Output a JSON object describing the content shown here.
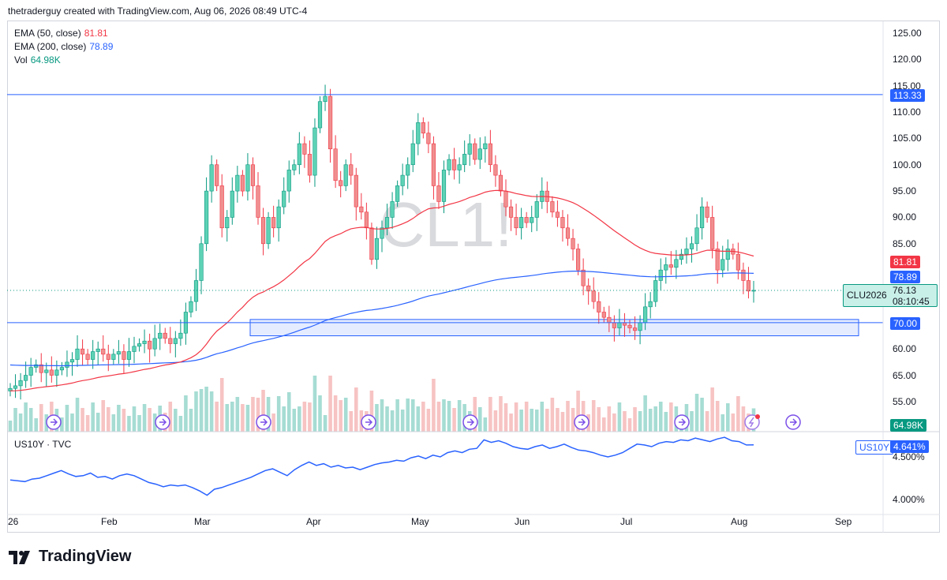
{
  "header": {
    "credit": "thetraderguy created with TradingView.com, Aug 06, 2026 08:49 UTC-4"
  },
  "watermark": "CL1!",
  "legend": {
    "ema50": {
      "label": "EMA (50, close)",
      "value": "81.81",
      "color": "#f23645"
    },
    "ema200": {
      "label": "EMA (200, close)",
      "value": "78.89",
      "color": "#2962ff"
    },
    "vol": {
      "label": "Vol",
      "value": "64.98K",
      "color": "#089981"
    }
  },
  "price_axis": {
    "ticks": [
      "125.00",
      "120.00",
      "115.00",
      "110.00",
      "105.00",
      "100.00",
      "95.00",
      "90.00",
      "85.00",
      "60.00",
      "65.00",
      "55.00"
    ],
    "tick_values": [
      125,
      120,
      115,
      110,
      105,
      100,
      95,
      90,
      85,
      65,
      60,
      55
    ]
  },
  "price_labels": {
    "resistance": {
      "text": "113.33",
      "value": 113.33,
      "color": "#2962ff"
    },
    "ema50": {
      "text": "81.81",
      "value": 81.81,
      "color": "#f23645"
    },
    "ema200": {
      "text": "78.89",
      "value": 78.89,
      "color": "#2962ff"
    },
    "last": {
      "symbol": "CLU2026",
      "price": "76.13",
      "countdown": "08:10:45",
      "value": 76.13,
      "color": "#089981"
    },
    "support": {
      "text": "70.00",
      "value": 70.0,
      "color": "#2962ff"
    },
    "volume": {
      "text": "64.98K",
      "color": "#089981"
    }
  },
  "support_zone": {
    "top": 70.6,
    "bottom": 67.5,
    "start_index": 48
  },
  "time_axis": {
    "labels": [
      "26",
      "Feb",
      "Mar",
      "Apr",
      "May",
      "Jun",
      "Jul",
      "Aug",
      "Sep"
    ]
  },
  "us10y": {
    "legend": "US10Y · TVC",
    "tag": "US10Y",
    "value": "4.641%",
    "ticks": [
      "4.500%",
      "4.000%"
    ],
    "tick_values": [
      4.5,
      4.0
    ],
    "color": "#2962ff"
  },
  "brand": "TradingView",
  "chart_data": {
    "type": "candlestick",
    "symbol": "CL1!",
    "contract": "CLU2026",
    "ohlc_close_path": [
      57.5,
      58,
      59,
      60,
      61.5,
      62,
      60.5,
      61,
      60,
      61,
      61.5,
      62.5,
      63,
      65,
      64,
      63,
      64.5,
      65,
      64,
      63,
      64,
      64.5,
      63,
      64.5,
      65.5,
      66,
      66.5,
      65,
      67,
      68,
      67,
      66,
      67,
      68,
      72,
      74,
      78,
      85,
      95,
      100,
      96,
      88,
      90,
      95,
      98,
      95,
      100,
      96,
      90,
      85,
      90,
      88,
      92,
      95,
      99,
      100,
      104,
      102,
      98,
      107,
      112,
      113,
      103,
      97,
      96,
      100,
      98,
      92,
      91,
      88,
      82,
      86,
      88,
      90,
      93,
      96,
      98,
      100,
      104,
      108,
      106,
      104,
      96,
      93,
      99,
      101,
      99,
      100,
      102,
      104,
      101,
      103,
      104,
      100,
      98,
      95,
      92,
      90,
      88,
      90,
      89,
      90,
      93,
      95,
      93,
      91,
      90,
      88,
      86,
      84,
      80,
      77,
      76,
      74,
      72,
      71,
      70,
      69,
      70,
      69.5,
      69,
      68.5,
      70,
      73,
      74,
      78,
      80,
      81,
      80.5,
      82,
      83,
      84,
      85,
      88,
      92,
      90,
      84,
      80,
      82,
      84,
      83,
      80,
      78,
      76,
      76.13
    ],
    "ema50_end": 81.81,
    "ema200_end": 78.89,
    "volume_last": "64.98K",
    "resistance": 113.33,
    "support": 70.0,
    "x_labels": [
      "26",
      "Feb",
      "Mar",
      "Apr",
      "May",
      "Jun",
      "Jul",
      "Aug",
      "Sep"
    ],
    "us10y_path": [
      4.23,
      4.22,
      4.21,
      4.24,
      4.25,
      4.28,
      4.31,
      4.34,
      4.3,
      4.27,
      4.28,
      4.31,
      4.26,
      4.27,
      4.24,
      4.28,
      4.3,
      4.28,
      4.24,
      4.2,
      4.18,
      4.15,
      4.17,
      4.16,
      4.17,
      4.14,
      4.1,
      4.05,
      4.12,
      4.14,
      4.17,
      4.2,
      4.23,
      4.26,
      4.3,
      4.34,
      4.36,
      4.32,
      4.28,
      4.35,
      4.4,
      4.44,
      4.4,
      4.42,
      4.38,
      4.4,
      4.37,
      4.38,
      4.35,
      4.38,
      4.41,
      4.43,
      4.44,
      4.46,
      4.45,
      4.49,
      4.51,
      4.48,
      4.52,
      4.5,
      4.55,
      4.57,
      4.55,
      4.59,
      4.6,
      4.7,
      4.67,
      4.69,
      4.66,
      4.62,
      4.6,
      4.59,
      4.62,
      4.64,
      4.6,
      4.62,
      4.65,
      4.61,
      4.58,
      4.57,
      4.55,
      4.52,
      4.5,
      4.52,
      4.55,
      4.6,
      4.65,
      4.64,
      4.62,
      4.66,
      4.68,
      4.67,
      4.7,
      4.69,
      4.72,
      4.7,
      4.68,
      4.71,
      4.73,
      4.69,
      4.68,
      4.64,
      4.641
    ]
  }
}
